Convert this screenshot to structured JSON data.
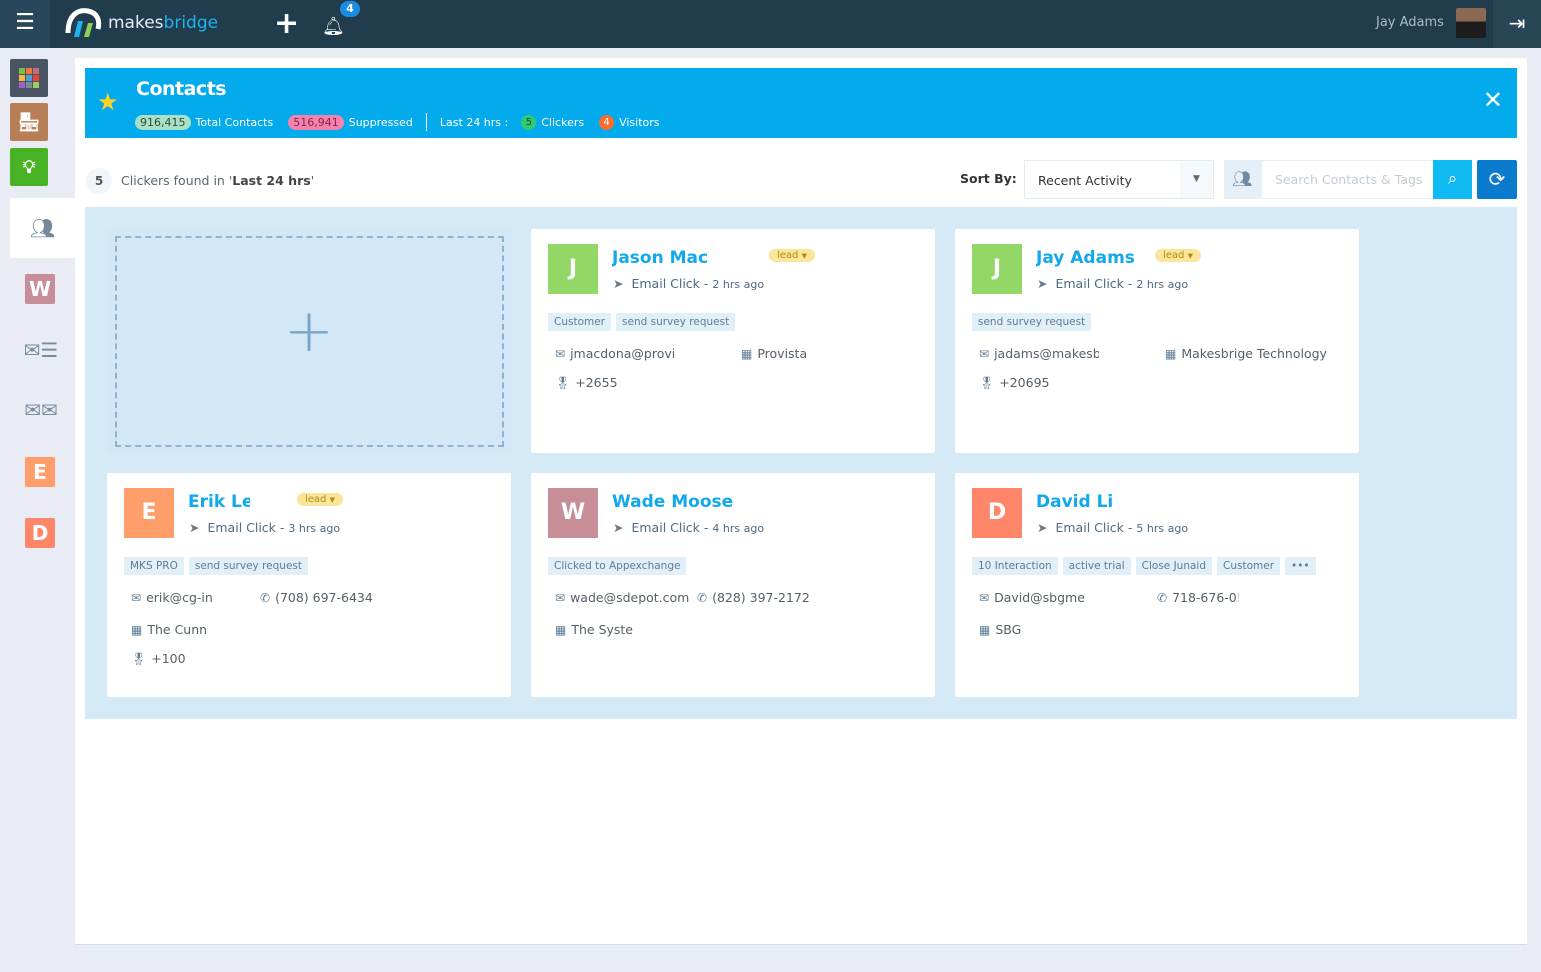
{
  "topbar": {
    "brand_a": "makes",
    "brand_b": "bridge",
    "notification_count": "4",
    "user_name": "Jay Adams"
  },
  "sidebar": {
    "items": [
      {
        "name": "apps",
        "color": "#4a5563"
      },
      {
        "name": "store",
        "color": "#b87e55"
      },
      {
        "name": "ideas-lab",
        "color": "#48b325"
      },
      {
        "name": "contacts",
        "active": true
      },
      {
        "letter": "W",
        "color": "#c78e97"
      },
      {
        "name": "email-list"
      },
      {
        "name": "email-campaigns"
      },
      {
        "letter": "E",
        "color": "#ff9d6b"
      },
      {
        "letter": "D",
        "color": "#ff8668"
      }
    ]
  },
  "banner": {
    "title": "Contacts",
    "total_contacts": "916,415",
    "total_contacts_label": "Total Contacts",
    "suppressed": "516,941",
    "suppressed_label": "Suppressed",
    "period_label": "Last 24 hrs :",
    "clickers": "5",
    "clickers_label": "Clickers",
    "visitors": "4",
    "visitors_label": "Visitors"
  },
  "toolbar": {
    "count": "5",
    "found_prefix": "Clickers found in '",
    "found_period": "Last 24 hrs",
    "found_suffix": "'",
    "sort_label": "Sort By:",
    "sort_value": "Recent Activity",
    "search_placeholder": "Search Contacts & Tags",
    "search_value": ""
  },
  "cards": [
    {
      "letter": "J",
      "color": "#93d867",
      "name": "Jason Mac",
      "lead": "lead",
      "activity": "Email Click - ",
      "time": "2 hrs ago",
      "tags": [
        "Customer",
        "send survey request"
      ],
      "email": "jmacdona@provi:",
      "company": "Provista",
      "phone": "",
      "score": "+2655"
    },
    {
      "letter": "J",
      "color": "#93d867",
      "name": "Jay Adams",
      "lead": "lead",
      "activity": "Email Click - ",
      "time": "2 hrs ago",
      "tags": [
        "send survey request"
      ],
      "email": "jadams@makesbridge.com",
      "company": "Makesbrige Technology",
      "phone": "",
      "score": "+20695"
    },
    {
      "letter": "E",
      "color": "#ff9d6b",
      "name": "Erik Lea",
      "lead": "lead",
      "activity": "Email Click - ",
      "time": "3 hrs ago",
      "tags": [
        "MKS PRO",
        "send survey request"
      ],
      "email": "erik@cg-in",
      "company": "The Cunn",
      "phone": "(708) 697-6434",
      "score": "+100"
    },
    {
      "letter": "W",
      "color": "#c78e97",
      "name": "Wade Moose",
      "lead": "",
      "activity": "Email Click - ",
      "time": "4 hrs ago",
      "tags": [
        "Clicked to Appexchange"
      ],
      "email": "wade@sdepot.com",
      "company": "The Syste",
      "phone": "(828) 397-2172",
      "score": ""
    },
    {
      "letter": "D",
      "color": "#ff8668",
      "name": "David Li",
      "lead": "",
      "activity": "Email Click - ",
      "time": "5 hrs ago",
      "tags": [
        "10 Interaction",
        "active trial",
        "Close Junaid",
        "Customer",
        "•••"
      ],
      "email": "David@sbgmе",
      "company": "SBG",
      "phone": "718-676-0!",
      "score": ""
    }
  ]
}
